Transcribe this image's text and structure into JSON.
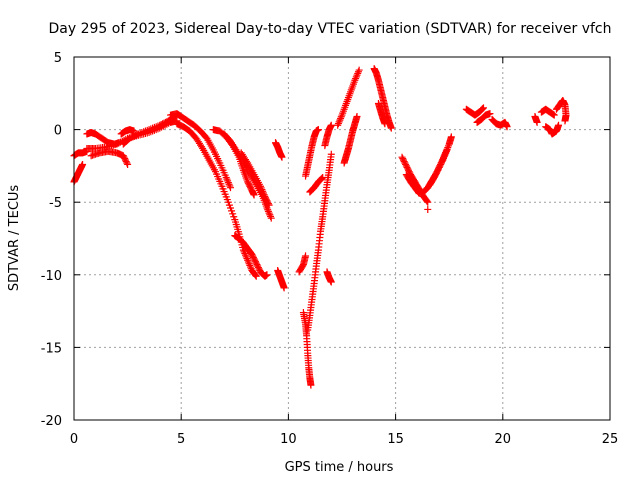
{
  "chart_data": {
    "type": "scatter",
    "title": "Day 295 of 2023, Sidereal Day-to-day VTEC variation (SDTVAR) for receiver vfch",
    "xlabel": "GPS time / hours",
    "ylabel": "SDTVAR / TECUs",
    "xlim": [
      0,
      25
    ],
    "ylim": [
      -20,
      5
    ],
    "xticks": [
      0,
      5,
      10,
      15,
      20,
      25
    ],
    "yticks": [
      -20,
      -15,
      -10,
      -5,
      0,
      5
    ],
    "grid": true,
    "marker": "+",
    "colors": {
      "series": "#ff0000",
      "grid": "#a0a0a0",
      "axis": "#000000"
    },
    "series": [
      {
        "name": "SDTVAR",
        "segments": [
          [
            [
              0.0,
              -3.6
            ],
            [
              0.1,
              -3.3
            ],
            [
              0.2,
              -3.0
            ],
            [
              0.3,
              -2.7
            ],
            [
              0.4,
              -2.4
            ]
          ],
          [
            [
              0.0,
              -1.8
            ],
            [
              0.2,
              -1.6
            ],
            [
              0.4,
              -1.6
            ],
            [
              0.6,
              -1.5
            ]
          ],
          [
            [
              0.6,
              -0.3
            ],
            [
              0.8,
              -0.2
            ],
            [
              1.0,
              -0.3
            ],
            [
              1.3,
              -0.6
            ],
            [
              1.6,
              -0.9
            ],
            [
              1.9,
              -1.0
            ],
            [
              2.1,
              -0.9
            ]
          ],
          [
            [
              0.6,
              -1.3
            ],
            [
              1.0,
              -1.3
            ],
            [
              1.5,
              -1.2
            ],
            [
              2.0,
              -1.0
            ],
            [
              2.5,
              -0.6
            ],
            [
              3.0,
              -0.4
            ],
            [
              3.5,
              -0.2
            ],
            [
              4.0,
              0.1
            ],
            [
              4.5,
              0.5
            ],
            [
              4.8,
              0.6
            ]
          ],
          [
            [
              0.8,
              -1.8
            ],
            [
              1.2,
              -1.6
            ],
            [
              1.6,
              -1.5
            ],
            [
              2.0,
              -1.6
            ],
            [
              2.3,
              -1.8
            ],
            [
              2.5,
              -2.4
            ]
          ],
          [
            [
              2.3,
              -1.0
            ],
            [
              2.6,
              -0.6
            ],
            [
              3.0,
              -0.3
            ],
            [
              3.5,
              0.0
            ],
            [
              4.0,
              0.3
            ],
            [
              4.4,
              0.6
            ],
            [
              4.7,
              0.9
            ]
          ],
          [
            [
              2.2,
              -0.3
            ],
            [
              2.4,
              -0.1
            ],
            [
              2.6,
              0.0
            ],
            [
              2.8,
              -0.1
            ]
          ],
          [
            [
              4.5,
              1.0
            ],
            [
              4.8,
              1.1
            ],
            [
              5.0,
              0.9
            ],
            [
              5.3,
              0.6
            ],
            [
              5.6,
              0.3
            ],
            [
              5.9,
              -0.1
            ],
            [
              6.2,
              -0.6
            ],
            [
              6.5,
              -1.4
            ],
            [
              6.8,
              -2.3
            ],
            [
              7.1,
              -3.3
            ],
            [
              7.3,
              -4.0
            ]
          ],
          [
            [
              4.8,
              0.4
            ],
            [
              5.1,
              0.2
            ],
            [
              5.4,
              -0.1
            ],
            [
              5.7,
              -0.6
            ],
            [
              6.0,
              -1.3
            ],
            [
              6.3,
              -2.1
            ],
            [
              6.6,
              -2.9
            ],
            [
              6.9,
              -3.9
            ],
            [
              7.2,
              -5.0
            ],
            [
              7.5,
              -6.2
            ],
            [
              7.7,
              -7.2
            ],
            [
              7.9,
              -8.3
            ],
            [
              8.1,
              -9.0
            ],
            [
              8.3,
              -9.7
            ],
            [
              8.5,
              -10.1
            ]
          ],
          [
            [
              7.5,
              -7.3
            ],
            [
              7.7,
              -7.5
            ],
            [
              7.9,
              -7.8
            ],
            [
              8.1,
              -8.2
            ],
            [
              8.3,
              -8.6
            ],
            [
              8.5,
              -9.2
            ],
            [
              8.7,
              -9.8
            ],
            [
              8.9,
              -10.1
            ],
            [
              9.0,
              -10.0
            ]
          ],
          [
            [
              6.5,
              0.0
            ],
            [
              6.8,
              -0.1
            ],
            [
              7.1,
              -0.5
            ],
            [
              7.4,
              -1.1
            ],
            [
              7.7,
              -1.9
            ],
            [
              7.9,
              -2.8
            ],
            [
              8.1,
              -3.6
            ],
            [
              8.3,
              -4.2
            ],
            [
              8.4,
              -4.5
            ]
          ],
          [
            [
              7.0,
              -0.3
            ],
            [
              7.3,
              -0.8
            ],
            [
              7.6,
              -1.5
            ],
            [
              7.9,
              -2.2
            ],
            [
              8.2,
              -3.0
            ],
            [
              8.5,
              -3.8
            ],
            [
              8.8,
              -4.6
            ],
            [
              9.0,
              -5.4
            ],
            [
              9.2,
              -6.1
            ]
          ],
          [
            [
              7.8,
              -1.6
            ],
            [
              8.1,
              -2.3
            ],
            [
              8.4,
              -3.1
            ],
            [
              8.7,
              -3.9
            ],
            [
              8.9,
              -4.6
            ],
            [
              9.1,
              -5.2
            ]
          ],
          [
            [
              9.4,
              -0.9
            ],
            [
              9.5,
              -1.2
            ],
            [
              9.6,
              -1.6
            ],
            [
              9.7,
              -1.9
            ]
          ],
          [
            [
              9.5,
              -9.7
            ],
            [
              9.6,
              -10.1
            ],
            [
              9.7,
              -10.5
            ],
            [
              9.8,
              -10.9
            ]
          ],
          [
            [
              10.5,
              -9.8
            ],
            [
              10.7,
              -9.3
            ],
            [
              10.8,
              -8.7
            ]
          ],
          [
            [
              10.7,
              -12.6
            ],
            [
              10.8,
              -13.4
            ],
            [
              10.85,
              -14.2
            ],
            [
              10.9,
              -15.4
            ],
            [
              10.95,
              -16.4
            ],
            [
              11.0,
              -17.1
            ],
            [
              11.05,
              -17.6
            ]
          ],
          [
            [
              10.9,
              -13.8
            ],
            [
              11.0,
              -12.8
            ],
            [
              11.1,
              -11.7
            ],
            [
              11.2,
              -10.6
            ],
            [
              11.3,
              -9.4
            ],
            [
              11.4,
              -8.3
            ],
            [
              11.5,
              -7.0
            ],
            [
              11.6,
              -6.0
            ],
            [
              11.7,
              -4.9
            ],
            [
              11.8,
              -3.8
            ],
            [
              11.9,
              -2.8
            ],
            [
              12.0,
              -1.7
            ]
          ],
          [
            [
              10.8,
              -3.2
            ],
            [
              10.9,
              -2.5
            ],
            [
              11.0,
              -1.8
            ],
            [
              11.1,
              -1.1
            ],
            [
              11.2,
              -0.5
            ],
            [
              11.3,
              -0.1
            ],
            [
              11.4,
              0.0
            ]
          ],
          [
            [
              11.7,
              -1.1
            ],
            [
              11.8,
              -0.5
            ],
            [
              11.9,
              0.0
            ],
            [
              12.0,
              0.3
            ]
          ],
          [
            [
              11.0,
              -4.3
            ],
            [
              11.2,
              -4.0
            ],
            [
              11.4,
              -3.6
            ],
            [
              11.6,
              -3.3
            ]
          ],
          [
            [
              11.8,
              -9.8
            ],
            [
              11.9,
              -10.2
            ],
            [
              12.0,
              -10.5
            ]
          ],
          [
            [
              12.3,
              0.3
            ],
            [
              12.5,
              1.0
            ],
            [
              12.7,
              1.8
            ],
            [
              12.9,
              2.6
            ],
            [
              13.1,
              3.4
            ],
            [
              13.3,
              4.1
            ]
          ],
          [
            [
              12.6,
              -2.3
            ],
            [
              12.7,
              -1.8
            ],
            [
              12.8,
              -1.3
            ],
            [
              12.9,
              -0.7
            ],
            [
              13.0,
              -0.1
            ],
            [
              13.1,
              0.4
            ],
            [
              13.2,
              0.9
            ]
          ],
          [
            [
              14.0,
              4.2
            ],
            [
              14.1,
              3.9
            ],
            [
              14.2,
              3.4
            ],
            [
              14.3,
              2.8
            ],
            [
              14.4,
              2.2
            ],
            [
              14.5,
              1.6
            ],
            [
              14.6,
              1.0
            ],
            [
              14.7,
              0.5
            ],
            [
              14.8,
              0.1
            ]
          ],
          [
            [
              14.2,
              1.8
            ],
            [
              14.3,
              1.3
            ],
            [
              14.4,
              0.8
            ],
            [
              14.5,
              0.4
            ]
          ],
          [
            [
              15.3,
              -1.9
            ],
            [
              15.5,
              -2.5
            ],
            [
              15.7,
              -3.1
            ],
            [
              15.9,
              -3.6
            ],
            [
              16.1,
              -4.1
            ],
            [
              16.3,
              -4.6
            ],
            [
              16.5,
              -5.0
            ]
          ],
          [
            [
              15.5,
              -3.1
            ],
            [
              15.7,
              -3.6
            ],
            [
              15.9,
              -4.0
            ],
            [
              16.1,
              -4.4
            ]
          ],
          [
            [
              16.5,
              -5.5
            ]
          ],
          [
            [
              16.3,
              -4.3
            ],
            [
              16.5,
              -4.0
            ],
            [
              16.7,
              -3.5
            ],
            [
              16.9,
              -3.0
            ],
            [
              17.1,
              -2.4
            ],
            [
              17.3,
              -1.7
            ],
            [
              17.5,
              -1.0
            ],
            [
              17.6,
              -0.5
            ]
          ],
          [
            [
              16.6,
              -3.8
            ],
            [
              16.8,
              -3.3
            ],
            [
              17.0,
              -2.7
            ],
            [
              17.2,
              -2.1
            ],
            [
              17.4,
              -1.4
            ]
          ],
          [
            [
              18.3,
              1.4
            ],
            [
              18.5,
              1.2
            ],
            [
              18.7,
              1.0
            ],
            [
              18.9,
              1.2
            ],
            [
              19.1,
              1.5
            ]
          ],
          [
            [
              18.8,
              0.5
            ],
            [
              19.0,
              0.7
            ],
            [
              19.2,
              1.0
            ],
            [
              19.4,
              1.1
            ]
          ],
          [
            [
              19.5,
              0.7
            ],
            [
              19.7,
              0.4
            ],
            [
              19.9,
              0.3
            ],
            [
              20.1,
              0.5
            ],
            [
              20.2,
              0.2
            ]
          ],
          [
            [
              21.5,
              0.9
            ],
            [
              21.6,
              0.5
            ]
          ],
          [
            [
              21.8,
              1.2
            ],
            [
              22.0,
              1.4
            ],
            [
              22.2,
              1.2
            ],
            [
              22.4,
              1.0
            ]
          ],
          [
            [
              22.0,
              0.2
            ],
            [
              22.2,
              0.0
            ],
            [
              22.3,
              -0.3
            ],
            [
              22.5,
              -0.1
            ],
            [
              22.6,
              0.3
            ]
          ],
          [
            [
              22.5,
              1.4
            ],
            [
              22.7,
              1.8
            ],
            [
              22.8,
              2.0
            ],
            [
              22.9,
              1.7
            ],
            [
              22.95,
              1.0
            ],
            [
              22.9,
              0.6
            ]
          ]
        ]
      }
    ]
  }
}
